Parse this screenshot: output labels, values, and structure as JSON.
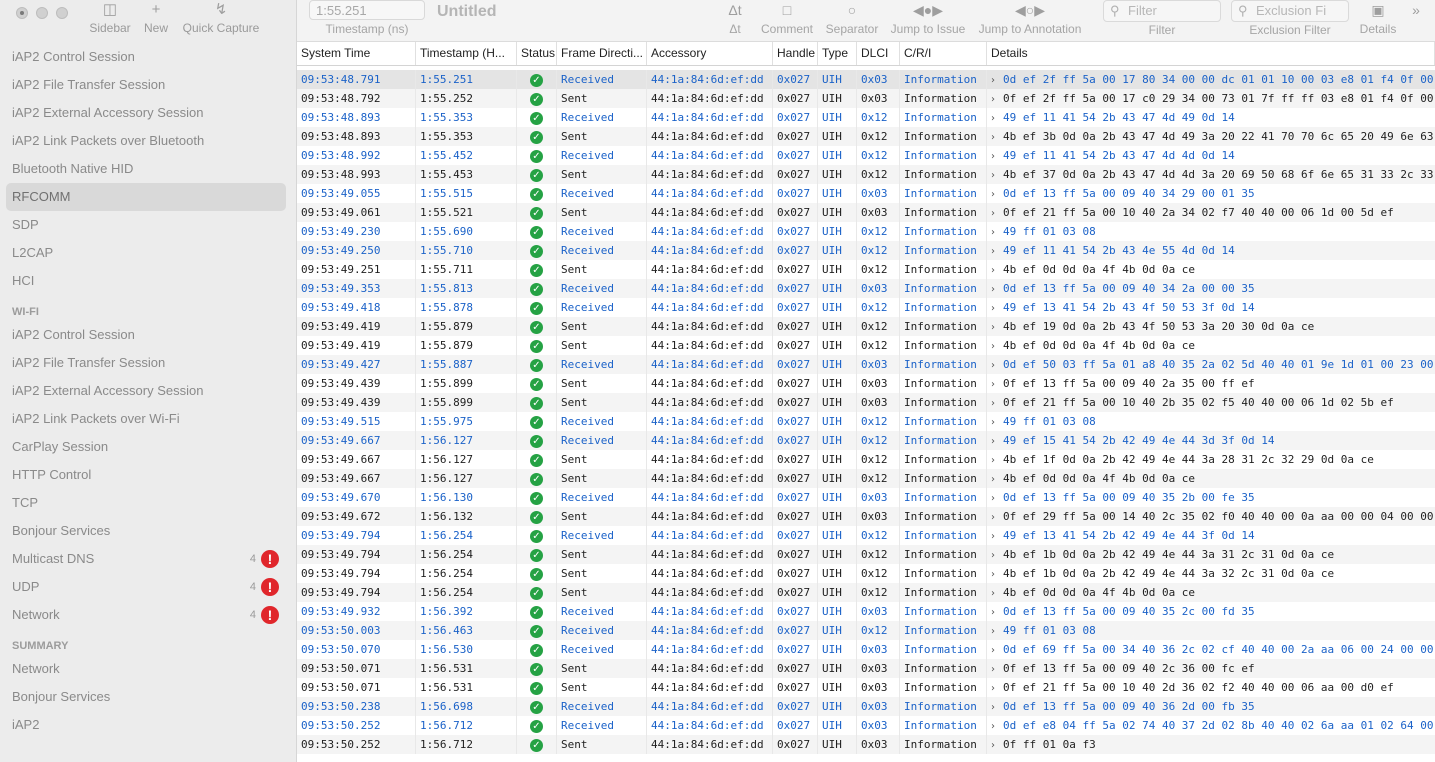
{
  "window": {
    "title": "Untitled",
    "timestamp_value": "1:55.251",
    "timestamp_label": "Timestamp (ns)"
  },
  "toolbar_left": {
    "sidebar": "Sidebar",
    "new": "New",
    "quick_capture": "Quick Capture"
  },
  "toolbar": {
    "delta_t": "Δt",
    "comment": "Comment",
    "separator": "Separator",
    "jump_issue": "Jump to Issue",
    "jump_annotation": "Jump to Annotation",
    "filter_placeholder": "Filter",
    "filter_label": "Filter",
    "exclusion_placeholder": "Exclusion Fi",
    "exclusion_label": "Exclusion Filter",
    "details": "Details",
    "more": "»"
  },
  "sidebar": {
    "items_top": [
      {
        "label": "iAP2 Control Session"
      },
      {
        "label": "iAP2 File Transfer Session"
      },
      {
        "label": "iAP2 External Accessory Session"
      },
      {
        "label": "iAP2 Link Packets over Bluetooth"
      },
      {
        "label": "Bluetooth Native HID"
      },
      {
        "label": "RFCOMM",
        "selected": true
      },
      {
        "label": "SDP"
      },
      {
        "label": "L2CAP"
      },
      {
        "label": "HCI"
      }
    ],
    "wifi_header": "WI-FI",
    "items_wifi": [
      {
        "label": "iAP2 Control Session"
      },
      {
        "label": "iAP2 File Transfer Session"
      },
      {
        "label": "iAP2 External Accessory Session"
      },
      {
        "label": "iAP2 Link Packets over Wi-Fi"
      },
      {
        "label": "CarPlay Session"
      },
      {
        "label": "HTTP Control"
      },
      {
        "label": "TCP"
      },
      {
        "label": "Bonjour Services"
      },
      {
        "label": "Multicast DNS",
        "count": "4",
        "warn": "!"
      },
      {
        "label": "UDP",
        "count": "4",
        "warn": "!"
      },
      {
        "label": "Network",
        "count": "4",
        "warn": "!"
      }
    ],
    "summary_header": "SUMMARY",
    "items_summary": [
      {
        "label": "Network"
      },
      {
        "label": "Bonjour Services"
      },
      {
        "label": "iAP2"
      }
    ]
  },
  "table": {
    "columns": [
      "System Time",
      "Timestamp (H...",
      "Status",
      "Frame Directi...",
      "Accessory",
      "Handle",
      "Type",
      "DLCI",
      "C/R/I",
      "Details"
    ],
    "status_glyph": "✓",
    "chevron": "›",
    "rows": [
      {
        "t": "09:53:48.791",
        "ts": "1:55.251",
        "dir": "Received",
        "acc": "44:1a:84:6d:ef:dd",
        "h": "0x027",
        "type": "UIH",
        "dlci": "0x03",
        "cri": "Information",
        "det": "0d ef 2f ff 5a 00 17 80 34 00 00 dc 01 01 10 00 03 e8 01 f4 0f 00"
      },
      {
        "t": "09:53:48.792",
        "ts": "1:55.252",
        "dir": "Sent",
        "acc": "44:1a:84:6d:ef:dd",
        "h": "0x027",
        "type": "UIH",
        "dlci": "0x03",
        "cri": "Information",
        "det": "0f ef 2f ff 5a 00 17 c0 29 34 00 73 01 7f ff ff 03 e8 01 f4 0f 00"
      },
      {
        "t": "09:53:48.893",
        "ts": "1:55.353",
        "dir": "Received",
        "acc": "44:1a:84:6d:ef:dd",
        "h": "0x027",
        "type": "UIH",
        "dlci": "0x12",
        "cri": "Information",
        "det": "49 ef 11 41 54 2b 43 47 4d 49 0d 14"
      },
      {
        "t": "09:53:48.893",
        "ts": "1:55.353",
        "dir": "Sent",
        "acc": "44:1a:84:6d:ef:dd",
        "h": "0x027",
        "type": "UIH",
        "dlci": "0x12",
        "cri": "Information",
        "det": "4b ef 3b 0d 0a 2b 43 47 4d 49 3a 20 22 41 70 70 6c 65 20 49 6e 63"
      },
      {
        "t": "09:53:48.992",
        "ts": "1:55.452",
        "dir": "Received",
        "acc": "44:1a:84:6d:ef:dd",
        "h": "0x027",
        "type": "UIH",
        "dlci": "0x12",
        "cri": "Information",
        "det": "49 ef 11 41 54 2b 43 47 4d 4d 0d 14"
      },
      {
        "t": "09:53:48.993",
        "ts": "1:55.453",
        "dir": "Sent",
        "acc": "44:1a:84:6d:ef:dd",
        "h": "0x027",
        "type": "UIH",
        "dlci": "0x12",
        "cri": "Information",
        "det": "4b ef 37 0d 0a 2b 43 47 4d 4d 3a 20 69 50 68 6f 6e 65 31 33 2c 33"
      },
      {
        "t": "09:53:49.055",
        "ts": "1:55.515",
        "dir": "Received",
        "acc": "44:1a:84:6d:ef:dd",
        "h": "0x027",
        "type": "UIH",
        "dlci": "0x03",
        "cri": "Information",
        "det": "0d ef 13 ff 5a 00 09 40 34 29 00 01 35"
      },
      {
        "t": "09:53:49.061",
        "ts": "1:55.521",
        "dir": "Sent",
        "acc": "44:1a:84:6d:ef:dd",
        "h": "0x027",
        "type": "UIH",
        "dlci": "0x03",
        "cri": "Information",
        "det": "0f ef 21 ff 5a 00 10 40 2a 34 02 f7 40 40 00 06 1d 00 5d ef"
      },
      {
        "t": "09:53:49.230",
        "ts": "1:55.690",
        "dir": "Received",
        "acc": "44:1a:84:6d:ef:dd",
        "h": "0x027",
        "type": "UIH",
        "dlci": "0x12",
        "cri": "Information",
        "det": "49 ff 01 03 08"
      },
      {
        "t": "09:53:49.250",
        "ts": "1:55.710",
        "dir": "Received",
        "acc": "44:1a:84:6d:ef:dd",
        "h": "0x027",
        "type": "UIH",
        "dlci": "0x12",
        "cri": "Information",
        "det": "49 ef 11 41 54 2b 43 4e 55 4d 0d 14"
      },
      {
        "t": "09:53:49.251",
        "ts": "1:55.711",
        "dir": "Sent",
        "acc": "44:1a:84:6d:ef:dd",
        "h": "0x027",
        "type": "UIH",
        "dlci": "0x12",
        "cri": "Information",
        "det": "4b ef 0d 0d 0a 4f 4b 0d 0a ce"
      },
      {
        "t": "09:53:49.353",
        "ts": "1:55.813",
        "dir": "Received",
        "acc": "44:1a:84:6d:ef:dd",
        "h": "0x027",
        "type": "UIH",
        "dlci": "0x03",
        "cri": "Information",
        "det": "0d ef 13 ff 5a 00 09 40 34 2a 00 00 35"
      },
      {
        "t": "09:53:49.418",
        "ts": "1:55.878",
        "dir": "Received",
        "acc": "44:1a:84:6d:ef:dd",
        "h": "0x027",
        "type": "UIH",
        "dlci": "0x12",
        "cri": "Information",
        "det": "49 ef 13 41 54 2b 43 4f 50 53 3f 0d 14"
      },
      {
        "t": "09:53:49.419",
        "ts": "1:55.879",
        "dir": "Sent",
        "acc": "44:1a:84:6d:ef:dd",
        "h": "0x027",
        "type": "UIH",
        "dlci": "0x12",
        "cri": "Information",
        "det": "4b ef 19 0d 0a 2b 43 4f 50 53 3a 20 30 0d 0a ce"
      },
      {
        "t": "09:53:49.419",
        "ts": "1:55.879",
        "dir": "Sent",
        "acc": "44:1a:84:6d:ef:dd",
        "h": "0x027",
        "type": "UIH",
        "dlci": "0x12",
        "cri": "Information",
        "det": "4b ef 0d 0d 0a 4f 4b 0d 0a ce"
      },
      {
        "t": "09:53:49.427",
        "ts": "1:55.887",
        "dir": "Received",
        "acc": "44:1a:84:6d:ef:dd",
        "h": "0x027",
        "type": "UIH",
        "dlci": "0x03",
        "cri": "Information",
        "det": "0d ef 50 03 ff 5a 01 a8 40 35 2a 02 5d 40 40 01 9e 1d 01 00 23 00"
      },
      {
        "t": "09:53:49.439",
        "ts": "1:55.899",
        "dir": "Sent",
        "acc": "44:1a:84:6d:ef:dd",
        "h": "0x027",
        "type": "UIH",
        "dlci": "0x03",
        "cri": "Information",
        "det": "0f ef 13 ff 5a 00 09 40 2a 35 00 ff ef"
      },
      {
        "t": "09:53:49.439",
        "ts": "1:55.899",
        "dir": "Sent",
        "acc": "44:1a:84:6d:ef:dd",
        "h": "0x027",
        "type": "UIH",
        "dlci": "0x03",
        "cri": "Information",
        "det": "0f ef 21 ff 5a 00 10 40 2b 35 02 f5 40 40 00 06 1d 02 5b ef"
      },
      {
        "t": "09:53:49.515",
        "ts": "1:55.975",
        "dir": "Received",
        "acc": "44:1a:84:6d:ef:dd",
        "h": "0x027",
        "type": "UIH",
        "dlci": "0x12",
        "cri": "Information",
        "det": "49 ff 01 03 08"
      },
      {
        "t": "09:53:49.667",
        "ts": "1:56.127",
        "dir": "Received",
        "acc": "44:1a:84:6d:ef:dd",
        "h": "0x027",
        "type": "UIH",
        "dlci": "0x12",
        "cri": "Information",
        "det": "49 ef 15 41 54 2b 42 49 4e 44 3d 3f 0d 14"
      },
      {
        "t": "09:53:49.667",
        "ts": "1:56.127",
        "dir": "Sent",
        "acc": "44:1a:84:6d:ef:dd",
        "h": "0x027",
        "type": "UIH",
        "dlci": "0x12",
        "cri": "Information",
        "det": "4b ef 1f 0d 0a 2b 42 49 4e 44 3a 28 31 2c 32 29 0d 0a ce"
      },
      {
        "t": "09:53:49.667",
        "ts": "1:56.127",
        "dir": "Sent",
        "acc": "44:1a:84:6d:ef:dd",
        "h": "0x027",
        "type": "UIH",
        "dlci": "0x12",
        "cri": "Information",
        "det": "4b ef 0d 0d 0a 4f 4b 0d 0a ce"
      },
      {
        "t": "09:53:49.670",
        "ts": "1:56.130",
        "dir": "Received",
        "acc": "44:1a:84:6d:ef:dd",
        "h": "0x027",
        "type": "UIH",
        "dlci": "0x03",
        "cri": "Information",
        "det": "0d ef 13 ff 5a 00 09 40 35 2b 00 fe 35"
      },
      {
        "t": "09:53:49.672",
        "ts": "1:56.132",
        "dir": "Sent",
        "acc": "44:1a:84:6d:ef:dd",
        "h": "0x027",
        "type": "UIH",
        "dlci": "0x03",
        "cri": "Information",
        "det": "0f ef 29 ff 5a 00 14 40 2c 35 02 f0 40 40 00 0a aa 00 00 04 00 00"
      },
      {
        "t": "09:53:49.794",
        "ts": "1:56.254",
        "dir": "Received",
        "acc": "44:1a:84:6d:ef:dd",
        "h": "0x027",
        "type": "UIH",
        "dlci": "0x12",
        "cri": "Information",
        "det": "49 ef 13 41 54 2b 42 49 4e 44 3f 0d 14"
      },
      {
        "t": "09:53:49.794",
        "ts": "1:56.254",
        "dir": "Sent",
        "acc": "44:1a:84:6d:ef:dd",
        "h": "0x027",
        "type": "UIH",
        "dlci": "0x12",
        "cri": "Information",
        "det": "4b ef 1b 0d 0a 2b 42 49 4e 44 3a 31 2c 31 0d 0a ce"
      },
      {
        "t": "09:53:49.794",
        "ts": "1:56.254",
        "dir": "Sent",
        "acc": "44:1a:84:6d:ef:dd",
        "h": "0x027",
        "type": "UIH",
        "dlci": "0x12",
        "cri": "Information",
        "det": "4b ef 1b 0d 0a 2b 42 49 4e 44 3a 32 2c 31 0d 0a ce"
      },
      {
        "t": "09:53:49.794",
        "ts": "1:56.254",
        "dir": "Sent",
        "acc": "44:1a:84:6d:ef:dd",
        "h": "0x027",
        "type": "UIH",
        "dlci": "0x12",
        "cri": "Information",
        "det": "4b ef 0d 0d 0a 4f 4b 0d 0a ce"
      },
      {
        "t": "09:53:49.932",
        "ts": "1:56.392",
        "dir": "Received",
        "acc": "44:1a:84:6d:ef:dd",
        "h": "0x027",
        "type": "UIH",
        "dlci": "0x03",
        "cri": "Information",
        "det": "0d ef 13 ff 5a 00 09 40 35 2c 00 fd 35"
      },
      {
        "t": "09:53:50.003",
        "ts": "1:56.463",
        "dir": "Received",
        "acc": "44:1a:84:6d:ef:dd",
        "h": "0x027",
        "type": "UIH",
        "dlci": "0x12",
        "cri": "Information",
        "det": "49 ff 01 03 08"
      },
      {
        "t": "09:53:50.070",
        "ts": "1:56.530",
        "dir": "Received",
        "acc": "44:1a:84:6d:ef:dd",
        "h": "0x027",
        "type": "UIH",
        "dlci": "0x03",
        "cri": "Information",
        "det": "0d ef 69 ff 5a 00 34 40 36 2c 02 cf 40 40 00 2a aa 06 00 24 00 00"
      },
      {
        "t": "09:53:50.071",
        "ts": "1:56.531",
        "dir": "Sent",
        "acc": "44:1a:84:6d:ef:dd",
        "h": "0x027",
        "type": "UIH",
        "dlci": "0x03",
        "cri": "Information",
        "det": "0f ef 13 ff 5a 00 09 40 2c 36 00 fc ef"
      },
      {
        "t": "09:53:50.071",
        "ts": "1:56.531",
        "dir": "Sent",
        "acc": "44:1a:84:6d:ef:dd",
        "h": "0x027",
        "type": "UIH",
        "dlci": "0x03",
        "cri": "Information",
        "det": "0f ef 21 ff 5a 00 10 40 2d 36 02 f2 40 40 00 06 aa 00 d0 ef"
      },
      {
        "t": "09:53:50.238",
        "ts": "1:56.698",
        "dir": "Received",
        "acc": "44:1a:84:6d:ef:dd",
        "h": "0x027",
        "type": "UIH",
        "dlci": "0x03",
        "cri": "Information",
        "det": "0d ef 13 ff 5a 00 09 40 36 2d 00 fb 35"
      },
      {
        "t": "09:53:50.252",
        "ts": "1:56.712",
        "dir": "Received",
        "acc": "44:1a:84:6d:ef:dd",
        "h": "0x027",
        "type": "UIH",
        "dlci": "0x03",
        "cri": "Information",
        "det": "0d ef e8 04 ff 5a 02 74 40 37 2d 02 8b 40 40 02 6a aa 01 02 64 00"
      },
      {
        "t": "09:53:50.252",
        "ts": "1:56.712",
        "dir": "Sent",
        "acc": "44:1a:84:6d:ef:dd",
        "h": "0x027",
        "type": "UIH",
        "dlci": "0x03",
        "cri": "Information",
        "det": "0f ff 01 0a f3"
      }
    ]
  }
}
